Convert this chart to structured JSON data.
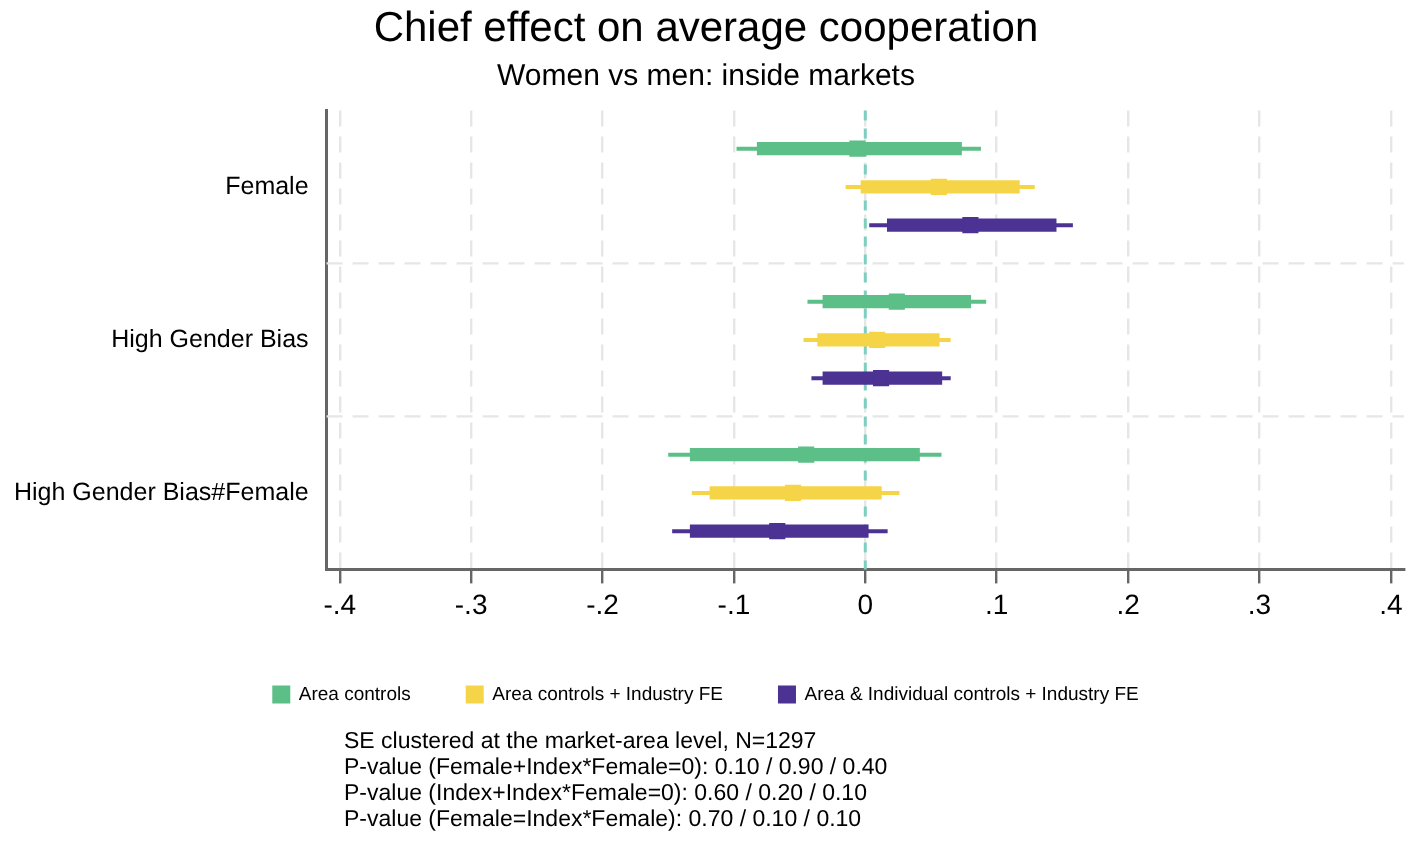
{
  "chart_data": {
    "type": "scatter",
    "orientation": "horizontal",
    "title": "Chief effect on average cooperation",
    "subtitle": "Women vs men: inside markets",
    "categories": [
      "Female",
      "High Gender Bias",
      "High Gender Bias#Female"
    ],
    "series": [
      {
        "name": "Area controls",
        "color": "#5cbf87",
        "values": [
          -0.006,
          0.024,
          -0.045
        ],
        "errors": [
          [
            -0.098,
            0.088
          ],
          [
            -0.044,
            0.092
          ],
          [
            -0.15,
            0.058
          ]
        ]
      },
      {
        "name": "Area controls + Industry FE",
        "color": "#f5d547",
        "values": [
          0.056,
          0.009,
          -0.055
        ],
        "errors": [
          [
            -0.015,
            0.129
          ],
          [
            -0.047,
            0.065
          ],
          [
            -0.132,
            0.026
          ]
        ]
      },
      {
        "name": "Area & Individual controls + Industry FE",
        "color": "#4b3293",
        "values": [
          0.08,
          0.012,
          -0.067
        ],
        "errors": [
          [
            0.003,
            0.158
          ],
          [
            -0.041,
            0.065
          ],
          [
            -0.147,
            0.017
          ]
        ]
      },
      {
        "type": "bar",
        "color": "#5cbf87",
        "base": [
          -0.082,
          -0.032,
          -0.133
        ],
        "values": [
          0.155,
          0.112,
          0.174
        ]
      },
      {
        "type": "bar",
        "color": "#f5d547",
        "base": [
          -0.003,
          -0.036,
          -0.118
        ],
        "values": [
          0.12,
          0.092,
          0.13
        ]
      },
      {
        "type": "bar",
        "color": "#4b3293",
        "base": [
          0.017,
          -0.032,
          -0.133
        ],
        "values": [
          0.128,
          0.09,
          0.135
        ]
      }
    ],
    "xlim": [
      -0.41,
      0.41
    ],
    "xticks": [
      {
        "value": -0.4,
        "label": "-.4"
      },
      {
        "value": -0.3,
        "label": "-.3"
      },
      {
        "value": -0.2,
        "label": "-.2"
      },
      {
        "value": -0.1,
        "label": "-.1"
      },
      0,
      {
        "value": 0.1,
        "label": ".1"
      },
      {
        "value": 0.2,
        "label": ".2"
      },
      {
        "value": 0.3,
        "label": ".3"
      },
      {
        "value": 0.4,
        "label": ".4"
      }
    ],
    "ref_lines": [
      {
        "axis": "x",
        "value": 0,
        "color": "#7fcfc0",
        "line_style": "dashed"
      }
    ],
    "grid": true,
    "marker": "square",
    "legend": "bottom",
    "annotations": [
      "SE clustered at the market-area level, N=1297",
      "P-value (Female+Index*Female=0): 0.10 / 0.90 / 0.40",
      "P-value (Index+Index*Female=0): 0.60 / 0.20 / 0.10",
      "P-value (Female=Index*Female): 0.70 / 0.10 / 0.10"
    ]
  }
}
